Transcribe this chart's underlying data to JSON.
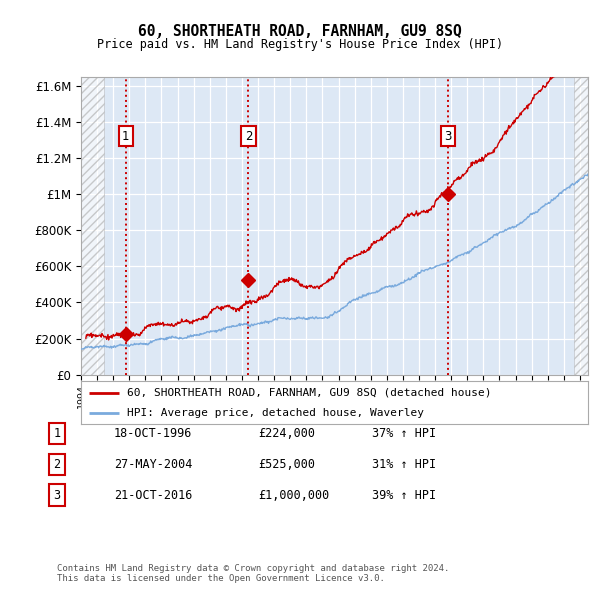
{
  "title": "60, SHORTHEATH ROAD, FARNHAM, GU9 8SQ",
  "subtitle": "Price paid vs. HM Land Registry's House Price Index (HPI)",
  "background_color": "#ffffff",
  "chart_bg_color": "#dde8f5",
  "grid_color": "#ffffff",
  "ylim": [
    0,
    1650000
  ],
  "yticks": [
    0,
    200000,
    400000,
    600000,
    800000,
    1000000,
    1200000,
    1400000,
    1600000
  ],
  "ytick_labels": [
    "£0",
    "£200K",
    "£400K",
    "£600K",
    "£800K",
    "£1M",
    "£1.2M",
    "£1.4M",
    "£1.6M"
  ],
  "xmin": 1994.0,
  "xmax": 2025.5,
  "hatch_left_end": 1995.4,
  "hatch_right_start": 2024.6,
  "transactions": [
    {
      "year": 1996.79,
      "price": 224000,
      "label": "1"
    },
    {
      "year": 2004.4,
      "price": 525000,
      "label": "2"
    },
    {
      "year": 2016.8,
      "price": 1000000,
      "label": "3"
    }
  ],
  "vline_color": "#cc0000",
  "sale_line_color": "#cc0000",
  "hpi_line_color": "#7aaadd",
  "legend_sale_label": "60, SHORTHEATH ROAD, FARNHAM, GU9 8SQ (detached house)",
  "legend_hpi_label": "HPI: Average price, detached house, Waverley",
  "table_entries": [
    {
      "num": "1",
      "date": "18-OCT-1996",
      "price": "£224,000",
      "change": "37% ↑ HPI"
    },
    {
      "num": "2",
      "date": "27-MAY-2004",
      "price": "£525,000",
      "change": "31% ↑ HPI"
    },
    {
      "num": "3",
      "date": "21-OCT-2016",
      "price": "£1,000,000",
      "change": "39% ↑ HPI"
    }
  ],
  "footer": "Contains HM Land Registry data © Crown copyright and database right 2024.\nThis data is licensed under the Open Government Licence v3.0."
}
